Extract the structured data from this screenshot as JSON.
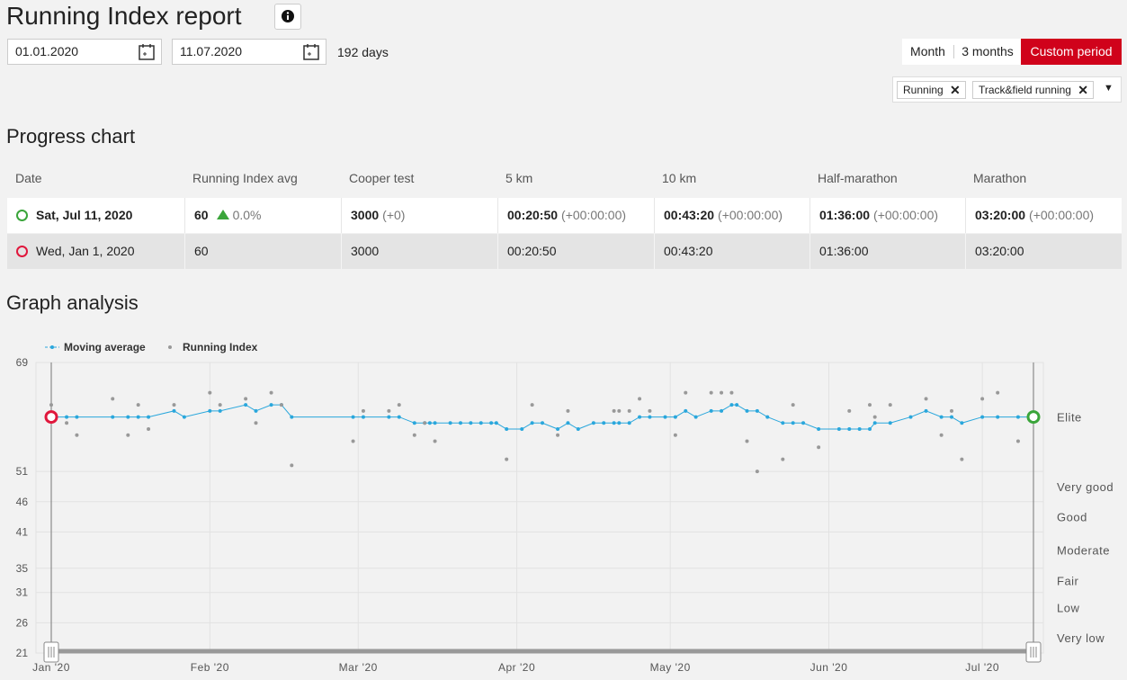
{
  "header": {
    "title": "Running Index report",
    "date_from": "01.01.2020",
    "date_to": "11.07.2020",
    "days": "192 days",
    "periods": [
      "Month",
      "3 months",
      "Custom period"
    ],
    "filters": [
      "Running",
      "Track&field running"
    ]
  },
  "progress": {
    "title": "Progress chart",
    "columns": [
      "Date",
      "Running Index avg",
      "Cooper test",
      "5 km",
      "10 km",
      "Half-marathon",
      "Marathon"
    ],
    "rows": [
      [
        {
          "text": "Sat, Jul 11, 2020"
        },
        {
          "text": 60,
          "change": "0.0%"
        },
        {
          "text": 3000,
          "change": "(+0)"
        },
        {
          "text": "00:20:50",
          "change": "(+00:00:00)"
        },
        {
          "text": "00:43:20",
          "change": "(+00:00:00)"
        },
        {
          "text": "01:36:00",
          "change": "(+00:00:00)"
        },
        {
          "text": "03:20:00",
          "change": "(+00:00:00)"
        }
      ],
      [
        {
          "text": "Wed, Jan 1, 2020"
        },
        {
          "text": 60
        },
        {
          "text": 3000
        },
        {
          "text": "00:20:50"
        },
        {
          "text": "00:43:20"
        },
        {
          "text": "01:36:00"
        },
        {
          "text": "03:20:00"
        }
      ]
    ]
  },
  "chart_data": {
    "type": "line",
    "title": "Graph analysis",
    "xlim": [
      0,
      192
    ],
    "xticks": [
      {
        "value": 0,
        "label": "Jan '20"
      },
      {
        "value": 31,
        "label": "Feb '20"
      },
      {
        "value": 60,
        "label": "Mar '20"
      },
      {
        "value": 91,
        "label": "Apr '20"
      },
      {
        "value": 121,
        "label": "May '20"
      },
      {
        "value": 152,
        "label": "Jun '20"
      },
      {
        "value": 182,
        "label": "Jul '20"
      }
    ],
    "ylim": [
      21,
      69
    ],
    "yticks": [
      21,
      26,
      31,
      35,
      41,
      46,
      51,
      69
    ],
    "grid": true,
    "zones": [
      "Very low",
      "Low",
      "Fair",
      "Moderate",
      "Good",
      "Very good",
      "Elite"
    ],
    "start_color": "#e0173c",
    "end_color": "#3aa53a",
    "series": [
      {
        "name": "Moving average",
        "color": "#2aa7dc",
        "x": [
          0,
          3,
          5,
          12,
          15,
          17,
          19,
          24,
          26,
          31,
          33,
          38,
          40,
          43,
          45,
          47,
          59,
          61,
          66,
          68,
          71,
          73,
          74,
          75,
          78,
          80,
          82,
          84,
          86,
          87,
          89,
          92,
          94,
          96,
          99,
          101,
          103,
          106,
          108,
          110,
          111,
          113,
          115,
          117,
          120,
          122,
          124,
          126,
          129,
          131,
          133,
          134,
          136,
          138,
          140,
          143,
          145,
          147,
          150,
          154,
          156,
          158,
          160,
          161,
          164,
          168,
          171,
          174,
          176,
          178,
          182,
          185,
          189,
          192
        ],
        "values": [
          60,
          60,
          60,
          60,
          60,
          60,
          60,
          61,
          60,
          61,
          61,
          62,
          61,
          62,
          62,
          60,
          60,
          60,
          60,
          60,
          59,
          59,
          59,
          59,
          59,
          59,
          59,
          59,
          59,
          59,
          58,
          58,
          59,
          59,
          58,
          59,
          58,
          59,
          59,
          59,
          59,
          59,
          60,
          60,
          60,
          60,
          61,
          60,
          61,
          61,
          62,
          62,
          61,
          61,
          60,
          59,
          59,
          59,
          58,
          58,
          58,
          58,
          58,
          59,
          59,
          60,
          61,
          60,
          60,
          59,
          60,
          60,
          60,
          60
        ]
      },
      {
        "name": "Running Index",
        "color": "#999999",
        "x": [
          0,
          3,
          5,
          12,
          15,
          17,
          19,
          24,
          31,
          33,
          38,
          40,
          43,
          45,
          47,
          59,
          61,
          66,
          68,
          71,
          73,
          75,
          89,
          94,
          99,
          101,
          110,
          111,
          113,
          115,
          117,
          122,
          124,
          129,
          131,
          133,
          136,
          138,
          143,
          145,
          150,
          156,
          160,
          161,
          164,
          171,
          174,
          176,
          178,
          182,
          185,
          189
        ],
        "values": [
          62,
          59,
          57,
          63,
          57,
          62,
          58,
          62,
          64,
          62,
          63,
          59,
          64,
          62,
          52,
          56,
          61,
          61,
          62,
          57,
          59,
          56,
          53,
          62,
          57,
          61,
          61,
          61,
          61,
          63,
          61,
          57,
          64,
          64,
          64,
          64,
          56,
          51,
          53,
          62,
          55,
          61,
          62,
          60,
          62,
          63,
          57,
          61,
          53,
          63,
          64,
          56
        ]
      }
    ]
  }
}
